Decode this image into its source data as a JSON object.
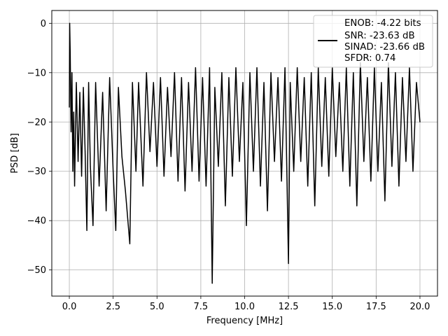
{
  "chart_data": {
    "type": "line",
    "title": "",
    "xlabel": "Frequency [MHz]",
    "ylabel": "PSD [dB]",
    "xlim": [
      -1.0,
      21.0
    ],
    "ylim": [
      -55.3,
      2.6
    ],
    "grid": true,
    "legend_placement": "upper right",
    "x_ticks": [
      0.0,
      2.5,
      5.0,
      7.5,
      10.0,
      12.5,
      15.0,
      17.5,
      20.0
    ],
    "x_tick_labels": [
      "0.0",
      "2.5",
      "5.0",
      "7.5",
      "10.0",
      "12.5",
      "15.0",
      "17.5",
      "20.0"
    ],
    "y_ticks": [
      0,
      -10,
      -20,
      -30,
      -40,
      -50
    ],
    "y_tick_labels": [
      "0",
      "−10",
      "−20",
      "−30",
      "−40",
      "−50"
    ],
    "legend": {
      "lines": [
        "ENOB: -4.22 bits",
        "SNR: -23.63 dB",
        "SINAD: -23.66 dB",
        "SFDR: 0.74"
      ]
    },
    "series": [
      {
        "color": "#000000",
        "x": [
          0,
          0.02,
          0.05,
          0.1,
          0.15,
          0.2,
          0.25,
          0.3,
          0.4,
          0.5,
          0.6,
          0.7,
          0.8,
          0.9,
          1.0,
          1.1,
          1.2,
          1.35,
          1.5,
          1.7,
          1.9,
          2.1,
          2.3,
          2.5,
          2.65,
          2.8,
          3.0,
          3.2,
          3.45,
          3.6,
          3.8,
          3.95,
          4.2,
          4.4,
          4.6,
          4.8,
          5.0,
          5.2,
          5.4,
          5.6,
          5.8,
          6.0,
          6.2,
          6.4,
          6.6,
          6.8,
          7.0,
          7.2,
          7.4,
          7.6,
          7.8,
          8.0,
          8.15,
          8.3,
          8.5,
          8.7,
          8.9,
          9.1,
          9.3,
          9.5,
          9.7,
          9.9,
          10.1,
          10.3,
          10.5,
          10.7,
          10.9,
          11.1,
          11.3,
          11.5,
          11.7,
          11.9,
          12.1,
          12.3,
          12.5,
          12.6,
          12.8,
          13.0,
          13.2,
          13.4,
          13.6,
          13.8,
          14.0,
          14.2,
          14.4,
          14.6,
          14.8,
          15.0,
          15.2,
          15.4,
          15.6,
          15.8,
          16.0,
          16.2,
          16.4,
          16.6,
          16.8,
          17.0,
          17.2,
          17.4,
          17.6,
          17.8,
          18.0,
          18.2,
          18.4,
          18.6,
          18.8,
          19.0,
          19.2,
          19.4,
          19.6,
          19.8,
          20.0
        ],
        "y": [
          -17,
          0,
          -6,
          -22,
          -10,
          -30,
          -18,
          -33,
          -12,
          -28,
          -14,
          -31,
          -13,
          -26,
          -42,
          -12,
          -29,
          -41,
          -12,
          -33,
          -14,
          -38,
          -11,
          -30,
          -42,
          -13,
          -27,
          -34,
          -44.7,
          -12,
          -30,
          -12,
          -33,
          -10,
          -26,
          -12,
          -29,
          -11,
          -31,
          -13,
          -27,
          -10,
          -32,
          -11,
          -34,
          -12,
          -30,
          -9,
          -32,
          -11,
          -33,
          -9,
          -52.7,
          -13,
          -29,
          -10,
          -37,
          -11,
          -31,
          -9,
          -28,
          -12,
          -41,
          -10,
          -30,
          -9,
          -33,
          -12,
          -38,
          -10,
          -28,
          -11,
          -32,
          -9,
          -48.7,
          -12,
          -30,
          -9,
          -28,
          -11,
          -33,
          -10,
          -37,
          -9,
          -29,
          -11,
          -31,
          -9,
          -27,
          -12,
          -30,
          -9,
          -33,
          -10,
          -37,
          -8,
          -28,
          -11,
          -32,
          -9,
          -30,
          -12,
          -36,
          -8,
          -29,
          -10,
          -33,
          -11,
          -28,
          -9,
          -30,
          -12,
          -20
        ]
      }
    ]
  }
}
